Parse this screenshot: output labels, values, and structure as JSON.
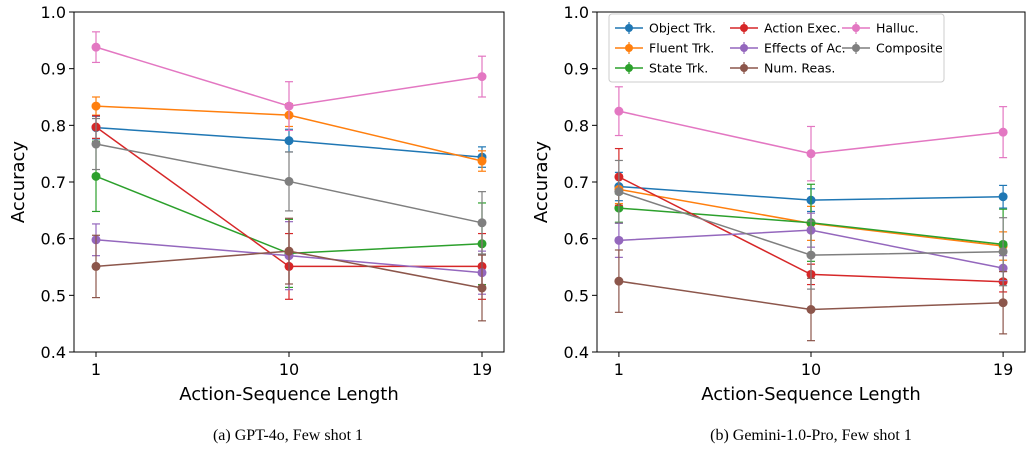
{
  "chart_data": [
    {
      "type": "line",
      "caption": "(a) GPT-4o, Few shot 1",
      "xlabel": "Action-Sequence Length",
      "ylabel": "Accuracy",
      "x": [
        1,
        10,
        19
      ],
      "xticks": [
        "1",
        "10",
        "19"
      ],
      "ylim": [
        0.4,
        1.0
      ],
      "yticks": [
        "0.4",
        "0.5",
        "0.6",
        "0.7",
        "0.8",
        "0.9",
        "1.0"
      ],
      "grid": false,
      "legend": null,
      "series": [
        {
          "name": "Object Trk.",
          "color": "#1f77b4",
          "values": [
            0.796,
            0.773,
            0.744
          ],
          "err": [
            0.02,
            0.02,
            0.018
          ]
        },
        {
          "name": "Fluent Trk.",
          "color": "#ff7f0e",
          "values": [
            0.834,
            0.818,
            0.737
          ],
          "err": [
            0.016,
            0.02,
            0.018
          ]
        },
        {
          "name": "State Trk.",
          "color": "#2ca02c",
          "values": [
            0.71,
            0.574,
            0.591
          ],
          "err": [
            0.062,
            0.06,
            0.072
          ]
        },
        {
          "name": "Action Exec.",
          "color": "#d62728",
          "values": [
            0.797,
            0.551,
            0.551
          ],
          "err": [
            0.02,
            0.058,
            0.058
          ]
        },
        {
          "name": "Effects of Ac.",
          "color": "#9467bd",
          "values": [
            0.598,
            0.57,
            0.54
          ],
          "err": [
            0.028,
            0.06,
            0.038
          ]
        },
        {
          "name": "Num. Reas.",
          "color": "#8c564b",
          "values": [
            0.551,
            0.578,
            0.513
          ],
          "err": [
            0.055,
            0.058,
            0.058
          ]
        },
        {
          "name": "Halluc.",
          "color": "#e377c2",
          "values": [
            0.938,
            0.834,
            0.886
          ],
          "err": [
            0.027,
            0.043,
            0.036
          ]
        },
        {
          "name": "Composite",
          "color": "#7f7f7f",
          "values": [
            0.767,
            0.701,
            0.628
          ],
          "err": [
            0.045,
            0.052,
            0.055
          ]
        }
      ]
    },
    {
      "type": "line",
      "caption": "(b) Gemini-1.0-Pro, Few shot 1",
      "xlabel": "Action-Sequence Length",
      "ylabel": "Accuracy",
      "x": [
        1,
        10,
        19
      ],
      "xticks": [
        "1",
        "10",
        "19"
      ],
      "ylim": [
        0.4,
        1.0
      ],
      "yticks": [
        "0.4",
        "0.5",
        "0.6",
        "0.7",
        "0.8",
        "0.9",
        "1.0"
      ],
      "grid": false,
      "legend": "top (3 columns)",
      "series": [
        {
          "name": "Object Trk.",
          "color": "#1f77b4",
          "values": [
            0.692,
            0.668,
            0.674
          ],
          "err": [
            0.025,
            0.02,
            0.02
          ]
        },
        {
          "name": "Fluent Trk.",
          "color": "#ff7f0e",
          "values": [
            0.687,
            0.627,
            0.587
          ],
          "err": [
            0.025,
            0.03,
            0.025
          ]
        },
        {
          "name": "State Trk.",
          "color": "#2ca02c",
          "values": [
            0.654,
            0.628,
            0.59
          ],
          "err": [
            0.025,
            0.068,
            0.062
          ]
        },
        {
          "name": "Action Exec.",
          "color": "#d62728",
          "values": [
            0.709,
            0.537,
            0.524
          ],
          "err": [
            0.05,
            0.018,
            0.018
          ]
        },
        {
          "name": "Effects of Ac.",
          "color": "#9467bd",
          "values": [
            0.597,
            0.615,
            0.548
          ],
          "err": [
            0.03,
            0.03,
            0.022
          ]
        },
        {
          "name": "Num. Reas.",
          "color": "#8c564b",
          "values": [
            0.525,
            0.475,
            0.487
          ],
          "err": [
            0.055,
            0.055,
            0.055
          ]
        },
        {
          "name": "Halluc.",
          "color": "#e377c2",
          "values": [
            0.825,
            0.75,
            0.788
          ],
          "err": [
            0.043,
            0.048,
            0.045
          ]
        },
        {
          "name": "Composite",
          "color": "#7f7f7f",
          "values": [
            0.683,
            0.571,
            0.577
          ],
          "err": [
            0.055,
            0.06,
            0.06
          ]
        }
      ]
    }
  ]
}
